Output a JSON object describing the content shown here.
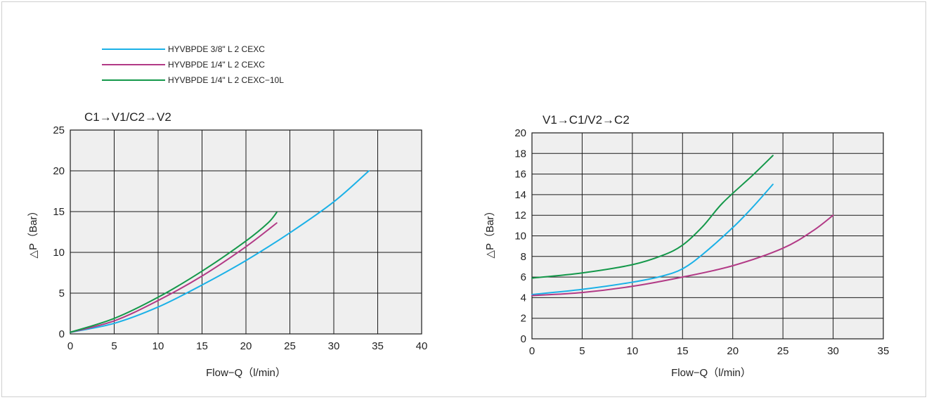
{
  "legend": [
    {
      "name": "HYVBPDE 3/8\" L 2 CEXC",
      "color": "#1bb1e7"
    },
    {
      "name": "HYVBPDE 1/4\" L 2 CEXC",
      "color": "#b23a86"
    },
    {
      "name": "HYVBPDE 1/4\" L 2 CEXC−10L",
      "color": "#14984a"
    }
  ],
  "chart_data": [
    {
      "type": "line",
      "title": "C1→V1/C2→V2",
      "xlabel": "Flow−Q（l/min）",
      "ylabel": "△P（Bar）",
      "xlim": [
        0,
        40
      ],
      "ylim": [
        0,
        25
      ],
      "xticks": [
        0,
        5,
        10,
        15,
        20,
        25,
        30,
        35,
        40
      ],
      "yticks": [
        0,
        5,
        10,
        15,
        20,
        25
      ],
      "grid": true,
      "series": [
        {
          "name": "HYVBPDE 3/8\" L 2 CEXC",
          "color": "#1bb1e7",
          "points": [
            [
              0,
              0.2
            ],
            [
              5,
              1.3
            ],
            [
              10,
              3.3
            ],
            [
              15,
              6.0
            ],
            [
              20,
              9.0
            ],
            [
              25,
              12.4
            ],
            [
              30,
              16.2
            ],
            [
              34,
              20.0
            ]
          ]
        },
        {
          "name": "HYVBPDE 1/4\" L 2 CEXC",
          "color": "#b23a86",
          "points": [
            [
              0,
              0.2
            ],
            [
              5,
              1.6
            ],
            [
              10,
              4.1
            ],
            [
              15,
              7.1
            ],
            [
              20,
              10.7
            ],
            [
              23.5,
              13.6
            ]
          ]
        },
        {
          "name": "HYVBPDE 1/4\" L 2 CEXC−10L",
          "color": "#14984a",
          "points": [
            [
              0,
              0.2
            ],
            [
              5,
              1.9
            ],
            [
              10,
              4.5
            ],
            [
              15,
              7.7
            ],
            [
              20,
              11.4
            ],
            [
              22.5,
              13.6
            ],
            [
              23.5,
              14.9
            ]
          ]
        }
      ]
    },
    {
      "type": "line",
      "title": "V1→C1/V2→C2",
      "xlabel": "Flow−Q（l/min）",
      "ylabel": "△P（Bar）",
      "xlim": [
        0,
        35
      ],
      "ylim": [
        0,
        20
      ],
      "xticks": [
        0,
        5,
        10,
        15,
        20,
        25,
        30,
        35
      ],
      "yticks": [
        0,
        2,
        4,
        6,
        8,
        10,
        12,
        14,
        16,
        18,
        20
      ],
      "grid": true,
      "series": [
        {
          "name": "HYVBPDE 3/8\" L 2 CEXC",
          "color": "#1bb1e7",
          "points": [
            [
              0,
              4.3
            ],
            [
              5,
              4.8
            ],
            [
              10,
              5.5
            ],
            [
              13,
              6.1
            ],
            [
              15,
              6.8
            ],
            [
              17,
              8.2
            ],
            [
              20,
              10.8
            ],
            [
              22,
              12.8
            ],
            [
              24,
              15.0
            ]
          ]
        },
        {
          "name": "HYVBPDE 1/4\" L 2 CEXC",
          "color": "#b23a86",
          "points": [
            [
              0,
              4.2
            ],
            [
              5,
              4.5
            ],
            [
              10,
              5.1
            ],
            [
              15,
              6.0
            ],
            [
              20,
              7.1
            ],
            [
              25,
              8.8
            ],
            [
              28,
              10.5
            ],
            [
              30,
              12.0
            ]
          ]
        },
        {
          "name": "HYVBPDE 1/4\" L 2 CEXC−10L",
          "color": "#14984a",
          "points": [
            [
              0,
              5.9
            ],
            [
              5,
              6.4
            ],
            [
              10,
              7.2
            ],
            [
              13,
              8.1
            ],
            [
              15,
              9.1
            ],
            [
              17,
              10.9
            ],
            [
              19,
              13.2
            ],
            [
              22,
              15.9
            ],
            [
              24,
              17.8
            ]
          ]
        }
      ]
    }
  ]
}
